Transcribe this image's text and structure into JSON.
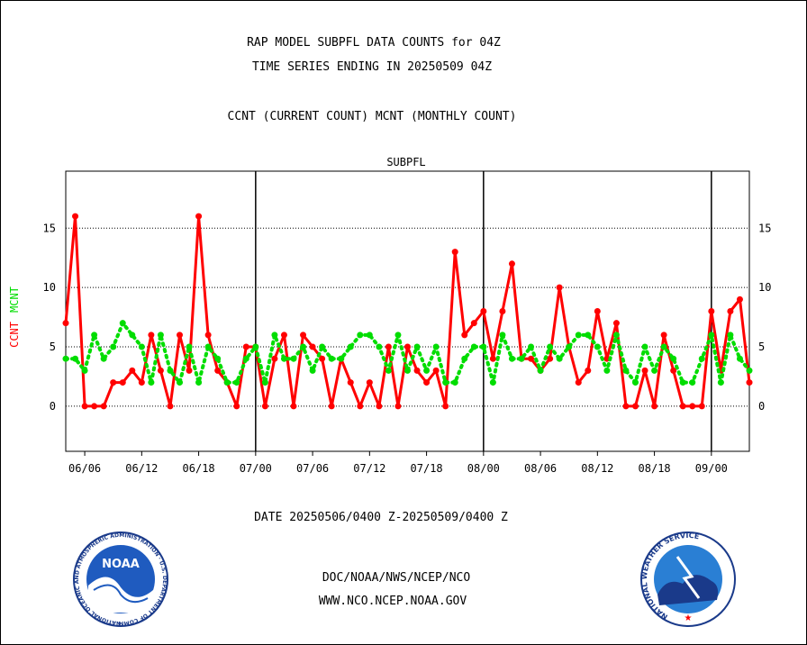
{
  "header": {
    "line1": "RAP MODEL SUBPFL DATA COUNTS for 04Z",
    "line2": "TIME SERIES ENDING IN 20250509 04Z",
    "line3": "CCNT (CURRENT COUNT) MCNT (MONTHLY COUNT)"
  },
  "footer": {
    "date_range": "DATE 20250506/0400 Z-20250509/0400 Z",
    "org": "DOC/NOAA/NWS/NCEP/NCO",
    "url": "WWW.NCO.NCEP.NOAA.GOV"
  },
  "logos": {
    "noaa_text": "NOAA",
    "noaa_ring": "NATIONAL OCEANIC AND ATMOSPHERIC ADMINISTRATION · U.S. DEPARTMENT OF COMMERCE ·",
    "nws_ring": "NATIONAL WEATHER SERVICE"
  },
  "colors": {
    "ccnt": "#ff0000",
    "mcnt": "#00dd00",
    "title_blue": "#0000cc",
    "grid": "#000000"
  },
  "chart_data": {
    "type": "line",
    "title": "SUBPFL",
    "ylabel_parts": [
      "CCNT",
      "MCNT"
    ],
    "ylim": [
      -3.8,
      19.8
    ],
    "y_ticks": [
      0,
      5,
      10,
      15
    ],
    "x_tick_labels": [
      "06/06",
      "06/12",
      "06/18",
      "07/00",
      "07/06",
      "07/12",
      "07/18",
      "08/00",
      "08/06",
      "08/12",
      "08/18",
      "09/00"
    ],
    "x_tick_pos": [
      2,
      8,
      14,
      20,
      26,
      32,
      38,
      44,
      50,
      56,
      62,
      68
    ],
    "day_boundaries": [
      20,
      44,
      68
    ],
    "grid": true,
    "x_range": [
      0,
      72
    ],
    "series": [
      {
        "name": "CCNT",
        "color": "#ff0000",
        "x": [
          0,
          1,
          2,
          3,
          4,
          5,
          6,
          7,
          8,
          9,
          10,
          11,
          12,
          13,
          14,
          15,
          16,
          17,
          18,
          19,
          20,
          21,
          22,
          23,
          24,
          25,
          26,
          27,
          28,
          29,
          30,
          31,
          32,
          33,
          34,
          35,
          36,
          37,
          38,
          39,
          40,
          41,
          42,
          43,
          44,
          45,
          46,
          47,
          48,
          49,
          50,
          51,
          52,
          53,
          54,
          55,
          56,
          57,
          58,
          59,
          60,
          61,
          62,
          63,
          64,
          65,
          66,
          67,
          68,
          69,
          70,
          71,
          72
        ],
        "values": [
          7,
          16,
          0,
          0,
          0,
          2,
          2,
          3,
          2,
          6,
          3,
          0,
          6,
          3,
          16,
          6,
          3,
          2,
          0,
          5,
          5,
          0,
          4,
          6,
          0,
          6,
          5,
          4,
          0,
          4,
          2,
          0,
          2,
          0,
          5,
          0,
          5,
          3,
          2,
          3,
          0,
          13,
          6,
          7,
          8,
          4,
          8,
          12,
          4,
          4,
          3,
          4,
          10,
          5,
          2,
          3,
          8,
          4,
          7,
          0,
          0,
          3,
          0,
          6,
          3,
          0,
          0,
          0,
          8,
          3,
          8,
          9,
          2
        ]
      },
      {
        "name": "MCNT",
        "color": "#00dd00",
        "x": [
          0,
          1,
          2,
          3,
          4,
          5,
          6,
          7,
          8,
          9,
          10,
          11,
          12,
          13,
          14,
          15,
          16,
          17,
          18,
          19,
          20,
          21,
          22,
          23,
          24,
          25,
          26,
          27,
          28,
          29,
          30,
          31,
          32,
          33,
          34,
          35,
          36,
          37,
          38,
          39,
          40,
          41,
          42,
          43,
          44,
          45,
          46,
          47,
          48,
          49,
          50,
          51,
          52,
          53,
          54,
          55,
          56,
          57,
          58,
          59,
          60,
          61,
          62,
          63,
          64,
          65,
          66,
          67,
          68,
          69,
          70,
          71,
          72
        ],
        "values": [
          4,
          4,
          3,
          6,
          4,
          5,
          7,
          6,
          5,
          2,
          6,
          3,
          2,
          5,
          2,
          5,
          4,
          2,
          2,
          4,
          5,
          2,
          6,
          4,
          4,
          5,
          3,
          5,
          4,
          4,
          5,
          6,
          6,
          5,
          3,
          6,
          3,
          5,
          3,
          5,
          2,
          2,
          4,
          5,
          5,
          2,
          6,
          4,
          4,
          5,
          3,
          5,
          4,
          5,
          6,
          6,
          5,
          3,
          6,
          3,
          2,
          5,
          3,
          5,
          4,
          2,
          2,
          4,
          6,
          2,
          6,
          4,
          3
        ]
      }
    ]
  }
}
